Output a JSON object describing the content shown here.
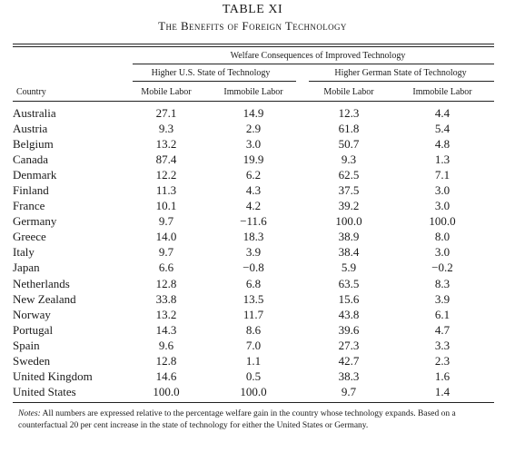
{
  "table": {
    "number": "TABLE XI",
    "title": "The Benefits of Foreign Technology",
    "spanner": "Welfare Consequences of Improved Technology",
    "group_us": "Higher U.S. State of Technology",
    "group_de": "Higher German State of Technology",
    "col_country": "Country",
    "col_mobile": "Mobile Labor",
    "col_immobile": "Immobile Labor",
    "rows": [
      {
        "country": "Australia",
        "us_mobile": "27.1",
        "us_immobile": "14.9",
        "de_mobile": "12.3",
        "de_immobile": "4.4"
      },
      {
        "country": "Austria",
        "us_mobile": "9.3",
        "us_immobile": "2.9",
        "de_mobile": "61.8",
        "de_immobile": "5.4"
      },
      {
        "country": "Belgium",
        "us_mobile": "13.2",
        "us_immobile": "3.0",
        "de_mobile": "50.7",
        "de_immobile": "4.8"
      },
      {
        "country": "Canada",
        "us_mobile": "87.4",
        "us_immobile": "19.9",
        "de_mobile": "9.3",
        "de_immobile": "1.3"
      },
      {
        "country": "Denmark",
        "us_mobile": "12.2",
        "us_immobile": "6.2",
        "de_mobile": "62.5",
        "de_immobile": "7.1"
      },
      {
        "country": "Finland",
        "us_mobile": "11.3",
        "us_immobile": "4.3",
        "de_mobile": "37.5",
        "de_immobile": "3.0"
      },
      {
        "country": "France",
        "us_mobile": "10.1",
        "us_immobile": "4.2",
        "de_mobile": "39.2",
        "de_immobile": "3.0"
      },
      {
        "country": "Germany",
        "us_mobile": "9.7",
        "us_immobile": "−11.6",
        "de_mobile": "100.0",
        "de_immobile": "100.0"
      },
      {
        "country": "Greece",
        "us_mobile": "14.0",
        "us_immobile": "18.3",
        "de_mobile": "38.9",
        "de_immobile": "8.0"
      },
      {
        "country": "Italy",
        "us_mobile": "9.7",
        "us_immobile": "3.9",
        "de_mobile": "38.4",
        "de_immobile": "3.0"
      },
      {
        "country": "Japan",
        "us_mobile": "6.6",
        "us_immobile": "−0.8",
        "de_mobile": "5.9",
        "de_immobile": "−0.2"
      },
      {
        "country": "Netherlands",
        "us_mobile": "12.8",
        "us_immobile": "6.8",
        "de_mobile": "63.5",
        "de_immobile": "8.3"
      },
      {
        "country": "New Zealand",
        "us_mobile": "33.8",
        "us_immobile": "13.5",
        "de_mobile": "15.6",
        "de_immobile": "3.9"
      },
      {
        "country": "Norway",
        "us_mobile": "13.2",
        "us_immobile": "11.7",
        "de_mobile": "43.8",
        "de_immobile": "6.1"
      },
      {
        "country": "Portugal",
        "us_mobile": "14.3",
        "us_immobile": "8.6",
        "de_mobile": "39.6",
        "de_immobile": "4.7"
      },
      {
        "country": "Spain",
        "us_mobile": "9.6",
        "us_immobile": "7.0",
        "de_mobile": "27.3",
        "de_immobile": "3.3"
      },
      {
        "country": "Sweden",
        "us_mobile": "12.8",
        "us_immobile": "1.1",
        "de_mobile": "42.7",
        "de_immobile": "2.3"
      },
      {
        "country": "United Kingdom",
        "us_mobile": "14.6",
        "us_immobile": "0.5",
        "de_mobile": "38.3",
        "de_immobile": "1.6"
      },
      {
        "country": "United States",
        "us_mobile": "100.0",
        "us_immobile": "100.0",
        "de_mobile": "9.7",
        "de_immobile": "1.4"
      }
    ]
  },
  "notes": {
    "label": "Notes:",
    "text": "All numbers are expressed relative to the percentage welfare gain in the country whose technology expands. Based on a counterfactual 20 per cent increase in the state of technology for either the United States or Germany."
  }
}
